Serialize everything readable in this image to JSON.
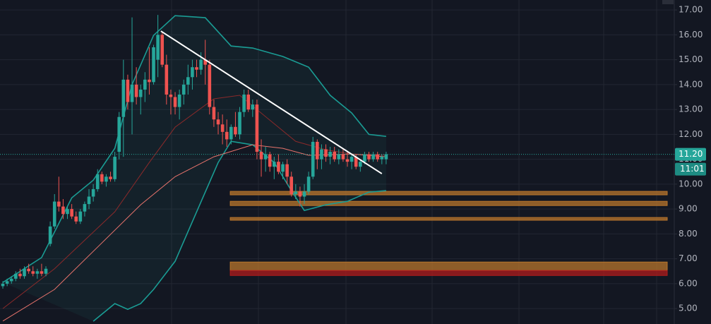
{
  "chart_data": {
    "type": "candlestick",
    "ylim": [
      4.38,
      17.4
    ],
    "xlim": [
      -0.66,
      155.9
    ],
    "grid": true,
    "yticks": [
      {
        "value": 17,
        "label": "17.00"
      },
      {
        "value": 16,
        "label": "16.00"
      },
      {
        "value": 15,
        "label": "15.00"
      },
      {
        "value": 14,
        "label": "14.00"
      },
      {
        "value": 13,
        "label": "13.00"
      },
      {
        "value": 12,
        "label": "12.00"
      },
      {
        "value": 11,
        "label": "11.00"
      },
      {
        "value": 10,
        "label": "10.00"
      },
      {
        "value": 9,
        "label": "9.00"
      },
      {
        "value": 8,
        "label": "8.00"
      },
      {
        "value": 7,
        "label": "7.00"
      },
      {
        "value": 6,
        "label": "6.00"
      },
      {
        "value": 5,
        "label": "5.00"
      }
    ],
    "up_color": "#26a69a",
    "down_color": "#ef5350",
    "open": [
      5.9,
      6.0,
      6.1,
      6.2,
      6.4,
      6.3,
      6.6,
      6.5,
      6.4,
      6.5,
      6.4,
      7.6,
      8.3,
      9.3,
      9.1,
      8.8,
      9.0,
      8.7,
      8.5,
      8.9,
      9.2,
      9.5,
      9.8,
      10.4,
      10.1,
      10.3,
      10.2,
      11.3,
      12.7,
      14.2,
      13.3,
      14.0,
      13.5,
      13.8,
      14.2,
      14.1,
      15.0,
      16.0,
      14.8,
      13.6,
      13.5,
      13.1,
      13.6,
      14.0,
      14.3,
      14.7,
      14.6,
      15.0,
      14.8,
      13.1,
      12.6,
      12.4,
      12.1,
      11.8,
      12.3,
      12.0,
      12.9,
      13.6,
      13.0,
      13.2,
      11.3,
      11.0,
      11.2,
      10.7,
      10.9,
      10.5,
      10.8,
      10.3,
      9.6,
      9.7,
      9.5,
      9.7,
      10.3,
      11.7,
      11.0,
      11.4,
      11.1,
      11.3,
      11.0,
      11.2,
      11.0,
      10.9,
      11.1,
      10.7,
      10.9,
      11.2,
      11.0,
      11.2,
      11.0,
      11.0
    ],
    "high": [
      6.1,
      6.2,
      6.3,
      6.5,
      6.6,
      6.7,
      6.8,
      6.7,
      6.6,
      6.8,
      6.7,
      8.5,
      9.6,
      10.3,
      9.4,
      9.1,
      9.2,
      8.9,
      9.0,
      9.3,
      9.8,
      10.0,
      10.6,
      10.5,
      10.4,
      10.5,
      11.3,
      12.9,
      15.0,
      14.4,
      16.7,
      14.7,
      14.0,
      14.5,
      15.5,
      15.6,
      16.8,
      16.1,
      15.2,
      13.8,
      13.7,
      13.8,
      14.2,
      14.8,
      15.0,
      15.0,
      15.3,
      15.8,
      15.0,
      13.4,
      12.9,
      12.8,
      12.6,
      12.4,
      12.9,
      13.1,
      13.8,
      13.8,
      13.4,
      13.4,
      11.8,
      11.5,
      11.3,
      11.1,
      11.2,
      10.9,
      11.0,
      10.5,
      10.0,
      9.9,
      10.0,
      10.5,
      11.9,
      11.8,
      11.6,
      11.6,
      11.5,
      11.5,
      11.4,
      11.4,
      11.3,
      11.2,
      11.2,
      11.0,
      11.3,
      11.3,
      11.3,
      11.3,
      11.2,
      11.3
    ],
    "low": [
      5.8,
      5.9,
      6.0,
      6.1,
      6.2,
      6.2,
      6.4,
      6.3,
      6.2,
      6.3,
      6.3,
      7.5,
      8.2,
      8.9,
      8.6,
      8.6,
      8.6,
      8.4,
      8.4,
      8.7,
      9.0,
      9.3,
      9.7,
      10.0,
      9.9,
      10.1,
      10.1,
      11.0,
      11.1,
      13.0,
      12.0,
      13.2,
      12.8,
      13.3,
      13.6,
      14.0,
      14.3,
      14.7,
      13.2,
      12.8,
      12.8,
      12.6,
      13.2,
      13.6,
      13.8,
      14.3,
      14.4,
      14.0,
      12.8,
      12.3,
      12.0,
      11.6,
      11.5,
      11.6,
      11.9,
      11.8,
      12.7,
      12.9,
      12.7,
      11.0,
      10.3,
      10.5,
      10.5,
      10.2,
      10.4,
      10.2,
      10.0,
      9.5,
      9.4,
      9.1,
      9.2,
      9.6,
      10.2,
      10.6,
      10.6,
      10.9,
      10.8,
      10.9,
      10.8,
      10.9,
      10.7,
      10.6,
      10.6,
      10.5,
      10.8,
      10.9,
      10.9,
      10.9,
      10.8,
      10.8
    ],
    "close": [
      6.0,
      6.1,
      6.2,
      6.4,
      6.3,
      6.6,
      6.5,
      6.4,
      6.5,
      6.4,
      6.6,
      8.3,
      9.3,
      9.1,
      8.8,
      9.0,
      8.7,
      8.5,
      8.9,
      9.2,
      9.5,
      9.8,
      10.4,
      10.1,
      10.3,
      10.2,
      11.1,
      12.7,
      14.2,
      13.3,
      14.0,
      13.5,
      13.8,
      14.2,
      14.1,
      15.5,
      16.0,
      14.8,
      13.6,
      13.5,
      13.1,
      13.6,
      14.0,
      14.3,
      14.7,
      14.6,
      15.0,
      14.8,
      13.1,
      12.6,
      12.4,
      12.1,
      11.8,
      12.3,
      12.0,
      12.9,
      13.6,
      13.0,
      13.2,
      11.3,
      11.0,
      11.2,
      10.7,
      10.9,
      10.5,
      10.8,
      10.3,
      9.6,
      9.7,
      9.5,
      9.7,
      10.3,
      11.7,
      11.0,
      11.4,
      11.1,
      11.3,
      11.0,
      11.2,
      11.0,
      10.9,
      11.1,
      10.7,
      10.9,
      11.2,
      11.0,
      11.2,
      11.0,
      11.1,
      11.2
    ],
    "lines": [
      {
        "color": "#1a9c94",
        "x": [
          0,
          9,
          16,
          21,
          26,
          30,
          35,
          40,
          47,
          53,
          58,
          65,
          71,
          76,
          81,
          85,
          89
        ],
        "values": [
          6.05,
          7.05,
          9.45,
          10.16,
          11.44,
          14.0,
          15.98,
          16.77,
          16.69,
          15.55,
          15.47,
          15.13,
          14.7,
          13.57,
          12.86,
          12.0,
          11.92
        ]
      },
      {
        "color": "#1a9c94",
        "x": [
          21,
          26,
          29,
          32,
          35,
          40,
          45,
          50,
          53,
          58,
          63,
          67,
          70,
          75,
          80,
          85,
          89
        ],
        "values": [
          4.49,
          5.2,
          4.97,
          5.2,
          5.77,
          6.9,
          8.89,
          10.87,
          11.72,
          11.58,
          10.87,
          9.74,
          8.94,
          9.17,
          9.31,
          9.68,
          9.74
        ]
      },
      {
        "color": "#8b2a2a",
        "x": [
          0,
          12,
          26,
          34,
          40,
          49,
          55,
          62,
          68,
          75,
          81,
          89
        ],
        "values": [
          5.0,
          6.6,
          8.89,
          10.87,
          12.29,
          13.43,
          13.57,
          12.57,
          11.72,
          11.38,
          11.21,
          11.16
        ]
      },
      {
        "color": "#e8736c",
        "x": [
          0,
          12,
          22,
          32,
          40,
          49,
          58,
          65,
          71,
          81,
          89
        ],
        "values": [
          4.5,
          5.77,
          7.47,
          9.17,
          10.3,
          11.1,
          11.58,
          11.44,
          11.16,
          11.21,
          11.1
        ]
      }
    ],
    "trendline": {
      "color": "#ffffff",
      "x": [
        36.7,
        88
      ],
      "values": [
        16.15,
        10.42
      ]
    },
    "zones": [
      {
        "x": 52.8,
        "from": 9.57,
        "to": 9.71,
        "color": "#b8752c"
      },
      {
        "x": 52.8,
        "from": 9.14,
        "to": 9.31,
        "color": "#b8752c"
      },
      {
        "x": 52.8,
        "from": 8.55,
        "to": 8.66,
        "color": "#b8752c"
      },
      {
        "x": 52.8,
        "from": 6.53,
        "to": 6.87,
        "color": "#b8752c"
      },
      {
        "x": 52.8,
        "from": 6.33,
        "to": 6.53,
        "color": "#b01c1c"
      }
    ],
    "last_price": {
      "value": 11.2,
      "label": "11.20",
      "color": "#26a69a"
    },
    "countdown": "11:01"
  }
}
